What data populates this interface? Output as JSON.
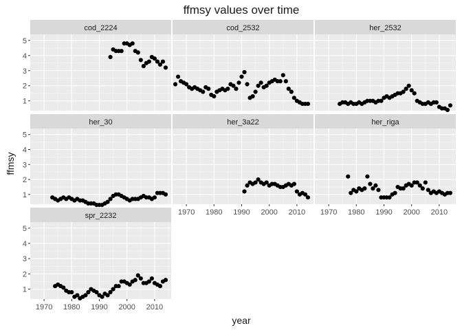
{
  "chart_data": {
    "type": "scatter",
    "title": "ffmsy values over time",
    "xlabel": "year",
    "ylabel": "ffmsy",
    "xlim": [
      1965,
      2016
    ],
    "ylim": [
      0.35,
      5.4
    ],
    "x_ticks": [
      1970,
      1980,
      1990,
      2000,
      2010
    ],
    "y_ticks": [
      1,
      2,
      3,
      4,
      5
    ],
    "x_tick_labels": [
      "1970",
      "1980",
      "1990",
      "2000",
      "2010"
    ],
    "y_tick_labels": [
      "1",
      "2",
      "3",
      "4",
      "5"
    ],
    "facet_columns": 3,
    "point_color": "#000000",
    "panel_background": "#ebebeb",
    "strip_background": "#d9d9d9",
    "grid": true,
    "panels": [
      {
        "name": "cod_2224",
        "x": [
          1994,
          1995,
          1996,
          1997,
          1998,
          1999,
          2000,
          2001,
          2002,
          2003,
          2004,
          2005,
          2006,
          2007,
          2008,
          2009,
          2010,
          2011,
          2012,
          2013,
          2014
        ],
        "y": [
          3.9,
          4.4,
          4.3,
          4.3,
          4.3,
          4.8,
          4.8,
          4.7,
          4.8,
          4.3,
          4.2,
          3.7,
          3.3,
          3.5,
          3.6,
          3.9,
          3.8,
          3.6,
          3.4,
          3.6,
          3.2
        ]
      },
      {
        "name": "cod_2532",
        "x": [
          1966,
          1967,
          1968,
          1969,
          1970,
          1971,
          1972,
          1973,
          1974,
          1975,
          1976,
          1977,
          1978,
          1979,
          1980,
          1981,
          1982,
          1983,
          1984,
          1985,
          1986,
          1987,
          1988,
          1989,
          1990,
          1991,
          1992,
          1993,
          1994,
          1995,
          1996,
          1997,
          1998,
          1999,
          2000,
          2001,
          2002,
          2003,
          2004,
          2005,
          2006,
          2007,
          2008,
          2009,
          2010,
          2011,
          2012,
          2013,
          2014
        ],
        "y": [
          2.1,
          2.6,
          2.3,
          2.2,
          2.1,
          1.9,
          1.8,
          1.9,
          1.8,
          1.7,
          1.6,
          1.9,
          1.8,
          1.4,
          1.3,
          1.6,
          1.7,
          1.8,
          1.7,
          1.8,
          2.1,
          2.0,
          1.8,
          2.2,
          2.6,
          2.9,
          2.1,
          1.2,
          1.3,
          1.6,
          2.0,
          2.2,
          1.9,
          2.0,
          2.2,
          2.3,
          2.4,
          2.3,
          2.3,
          2.7,
          2.3,
          1.8,
          1.6,
          1.2,
          1.0,
          0.9,
          0.8,
          0.8,
          0.8
        ]
      },
      {
        "name": "her_2532",
        "x": [
          1974,
          1975,
          1976,
          1977,
          1978,
          1979,
          1980,
          1981,
          1982,
          1983,
          1984,
          1985,
          1986,
          1987,
          1988,
          1989,
          1990,
          1991,
          1992,
          1993,
          1994,
          1995,
          1996,
          1997,
          1998,
          1999,
          2000,
          2001,
          2002,
          2003,
          2004,
          2005,
          2006,
          2007,
          2008,
          2009,
          2010,
          2011,
          2012,
          2013,
          2014
        ],
        "y": [
          0.8,
          0.9,
          0.9,
          0.8,
          0.9,
          0.8,
          0.8,
          0.9,
          0.8,
          0.9,
          1.0,
          1.0,
          1.0,
          0.9,
          1.0,
          1.0,
          1.2,
          1.3,
          1.2,
          1.3,
          1.4,
          1.5,
          1.5,
          1.6,
          1.8,
          2.0,
          1.7,
          1.5,
          1.0,
          0.9,
          0.8,
          0.8,
          0.9,
          0.8,
          0.9,
          0.9,
          0.6,
          0.5,
          0.5,
          0.4,
          0.7
        ]
      },
      {
        "name": "her_30",
        "x": [
          1973,
          1974,
          1975,
          1976,
          1977,
          1978,
          1979,
          1980,
          1981,
          1982,
          1983,
          1984,
          1985,
          1986,
          1987,
          1988,
          1989,
          1990,
          1991,
          1992,
          1993,
          1994,
          1995,
          1996,
          1997,
          1998,
          1999,
          2000,
          2001,
          2002,
          2003,
          2004,
          2005,
          2006,
          2007,
          2008,
          2009,
          2010,
          2011,
          2012,
          2013,
          2014
        ],
        "y": [
          0.8,
          0.7,
          0.6,
          0.7,
          0.8,
          0.7,
          0.8,
          0.7,
          0.6,
          0.7,
          0.6,
          0.6,
          0.5,
          0.4,
          0.4,
          0.4,
          0.3,
          0.3,
          0.3,
          0.4,
          0.5,
          0.7,
          0.9,
          1.0,
          1.0,
          0.9,
          0.8,
          0.7,
          0.6,
          0.7,
          0.7,
          0.7,
          0.8,
          0.9,
          0.8,
          0.8,
          0.7,
          0.8,
          1.1,
          1.1,
          1.1,
          1.0
        ]
      },
      {
        "name": "her_3a22",
        "x": [
          1991,
          1992,
          1993,
          1994,
          1995,
          1996,
          1997,
          1998,
          1999,
          2000,
          2001,
          2002,
          2003,
          2004,
          2005,
          2006,
          2007,
          2008,
          2009,
          2010,
          2011,
          2012,
          2013,
          2014
        ],
        "y": [
          1.2,
          1.6,
          1.8,
          1.7,
          1.8,
          2.0,
          1.8,
          1.7,
          1.8,
          1.6,
          1.7,
          1.7,
          1.6,
          1.5,
          1.5,
          1.6,
          1.7,
          1.6,
          1.7,
          1.2,
          1.0,
          1.1,
          1.0,
          0.8
        ]
      },
      {
        "name": "her_riga",
        "x": [
          1977,
          1978,
          1979,
          1980,
          1981,
          1982,
          1983,
          1984,
          1985,
          1986,
          1987,
          1988,
          1989,
          1990,
          1991,
          1992,
          1993,
          1994,
          1995,
          1996,
          1997,
          1998,
          1999,
          2000,
          2001,
          2002,
          2003,
          2004,
          2005,
          2006,
          2007,
          2008,
          2009,
          2010,
          2011,
          2012,
          2013,
          2014
        ],
        "y": [
          2.2,
          1.1,
          1.3,
          1.2,
          1.4,
          1.3,
          1.4,
          2.2,
          1.7,
          1.4,
          1.6,
          1.3,
          0.8,
          0.8,
          0.8,
          0.8,
          1.0,
          1.1,
          1.5,
          1.4,
          1.4,
          1.6,
          1.7,
          1.6,
          1.8,
          1.8,
          1.6,
          1.4,
          1.8,
          1.3,
          1.1,
          1.2,
          1.1,
          1.2,
          1.1,
          1.0,
          1.1,
          1.1
        ]
      },
      {
        "name": "spr_2232",
        "x": [
          1974,
          1975,
          1976,
          1977,
          1978,
          1979,
          1980,
          1981,
          1982,
          1983,
          1984,
          1985,
          1986,
          1987,
          1988,
          1989,
          1990,
          1991,
          1992,
          1993,
          1994,
          1995,
          1996,
          1997,
          1998,
          1999,
          2000,
          2001,
          2002,
          2003,
          2004,
          2005,
          2006,
          2007,
          2008,
          2009,
          2010,
          2011,
          2012,
          2013,
          2014
        ],
        "y": [
          1.2,
          1.3,
          1.2,
          1.1,
          0.9,
          0.8,
          0.8,
          0.5,
          0.6,
          0.4,
          0.5,
          0.6,
          0.8,
          1.0,
          0.9,
          0.8,
          0.6,
          0.5,
          0.7,
          0.6,
          0.8,
          1.0,
          1.2,
          1.2,
          1.5,
          1.5,
          1.4,
          1.3,
          1.5,
          1.6,
          1.9,
          1.7,
          1.4,
          1.4,
          1.5,
          1.7,
          1.4,
          1.3,
          1.2,
          1.5,
          1.6
        ]
      }
    ]
  }
}
